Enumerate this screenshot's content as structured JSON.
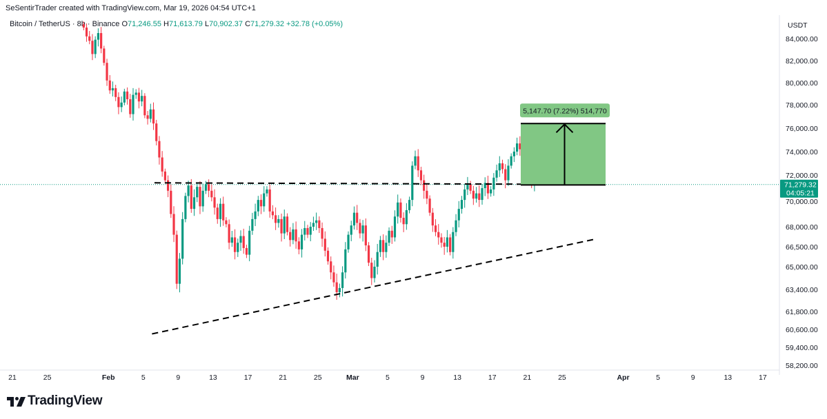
{
  "header": {
    "credit": "SeSentirTrader created with TradingView.com, Mar 19, 2026 04:54 UTC+1",
    "symbol": "Bitcoin / TetherUS · 8h · Binance",
    "open_label": "O",
    "open": "71,246.55",
    "high_label": "H",
    "high": "71,613.79",
    "low_label": "L",
    "low": "70,902.37",
    "close_label": "C",
    "close": "71,279.32",
    "change": "+32.78 (+0.05%)"
  },
  "price_axis": {
    "currency": "USDT",
    "ticks": [
      "84,000.00",
      "82,000.00",
      "80,000.00",
      "78,000.00",
      "76,000.00",
      "74,000.00",
      "72,000.00",
      "70,000.00",
      "68,000.00",
      "66,500.00",
      "65,000.00",
      "63,400.00",
      "61,800.00",
      "60,600.00",
      "59,400.00",
      "58,200.00"
    ],
    "tick_values": [
      84000,
      82000,
      80000,
      78000,
      76000,
      74000,
      72000,
      70000,
      68000,
      66500,
      65000,
      63400,
      61800,
      60600,
      59400,
      58200
    ],
    "last_price": "71,279.32",
    "countdown": "04:05:21"
  },
  "time_axis": {
    "labels": [
      "21",
      "25",
      "Feb",
      "5",
      "9",
      "13",
      "17",
      "21",
      "25",
      "Mar",
      "5",
      "9",
      "13",
      "17",
      "21",
      "25",
      "Apr",
      "5",
      "9",
      "13",
      "17"
    ],
    "bold": [
      "Feb",
      "Mar",
      "Apr"
    ],
    "dates": [
      "2026-01-21",
      "2026-01-25",
      "2026-02-01",
      "2026-02-05",
      "2026-02-09",
      "2026-02-13",
      "2026-02-17",
      "2026-02-21",
      "2026-02-25",
      "2026-03-01",
      "2026-03-05",
      "2026-03-09",
      "2026-03-13",
      "2026-03-17",
      "2026-03-21",
      "2026-03-25",
      "2026-04-01",
      "2026-04-05",
      "2026-04-09",
      "2026-04-13",
      "2026-04-17"
    ]
  },
  "chart_data": {
    "type": "candlestick",
    "symbol": "BTCUSDT",
    "interval": "8h",
    "candle_start": "2026-01-29",
    "candles_per_day": 3,
    "closes": [
      85000,
      84200,
      83800,
      82600,
      83900,
      84500,
      83100,
      81800,
      80200,
      79300,
      79500,
      78700,
      77800,
      78200,
      79200,
      78500,
      77200,
      78900,
      79100,
      78300,
      78800,
      77100,
      76800,
      77600,
      76400,
      74900,
      73500,
      72300,
      71600,
      70800,
      69000,
      67400,
      63800,
      65600,
      68600,
      70400,
      71200,
      69400,
      70300,
      71100,
      69600,
      70800,
      71300,
      70800,
      70300,
      69500,
      68600,
      69800,
      68500,
      68200,
      66800,
      67200,
      66100,
      66800,
      67300,
      66400,
      65900,
      67700,
      68600,
      69200,
      70100,
      69600,
      70600,
      70900,
      69200,
      68900,
      68300,
      68600,
      67500,
      68800,
      67600,
      67000,
      67800,
      66900,
      66300,
      67400,
      67900,
      67400,
      68000,
      68300,
      68500,
      67900,
      67100,
      66200,
      65400,
      64600,
      63900,
      63200,
      63500,
      64600,
      66300,
      67400,
      68100,
      69100,
      68300,
      67500,
      68100,
      66600,
      65300,
      64200,
      65000,
      66100,
      67000,
      66100,
      66800,
      67700,
      67200,
      68800,
      69900,
      68700,
      68200,
      69300,
      70100,
      72800,
      73600,
      72400,
      71600,
      70800,
      70200,
      69100,
      68100,
      67600,
      67200,
      66800,
      66500,
      67200,
      66100,
      67600,
      68500,
      69400,
      70100,
      70900,
      71300,
      70800,
      70200,
      70600,
      70100,
      71000,
      71400,
      70600,
      70900,
      71800,
      72400,
      73000,
      72500,
      71600,
      72800,
      73600,
      74000,
      74700,
      74200,
      74300,
      73400,
      72100,
      71246,
      71279
    ]
  },
  "drawings": {
    "measure_label": "5,147.70 (7.22%) 514,770",
    "measure_from": 71246,
    "measure_to": 76394,
    "resistance_level": 71300,
    "support_line_start": {
      "date": "2026-02-06",
      "price": 60300
    },
    "support_line_end": {
      "date": "2026-03-29",
      "price": 67100
    }
  },
  "colors": {
    "up": "#089981",
    "down": "#f23645",
    "measure_fill": "#81c784",
    "measure_label_bg": "#81c784",
    "last_price_bg": "#089981"
  },
  "brand": {
    "logo_text": "TradingView"
  }
}
